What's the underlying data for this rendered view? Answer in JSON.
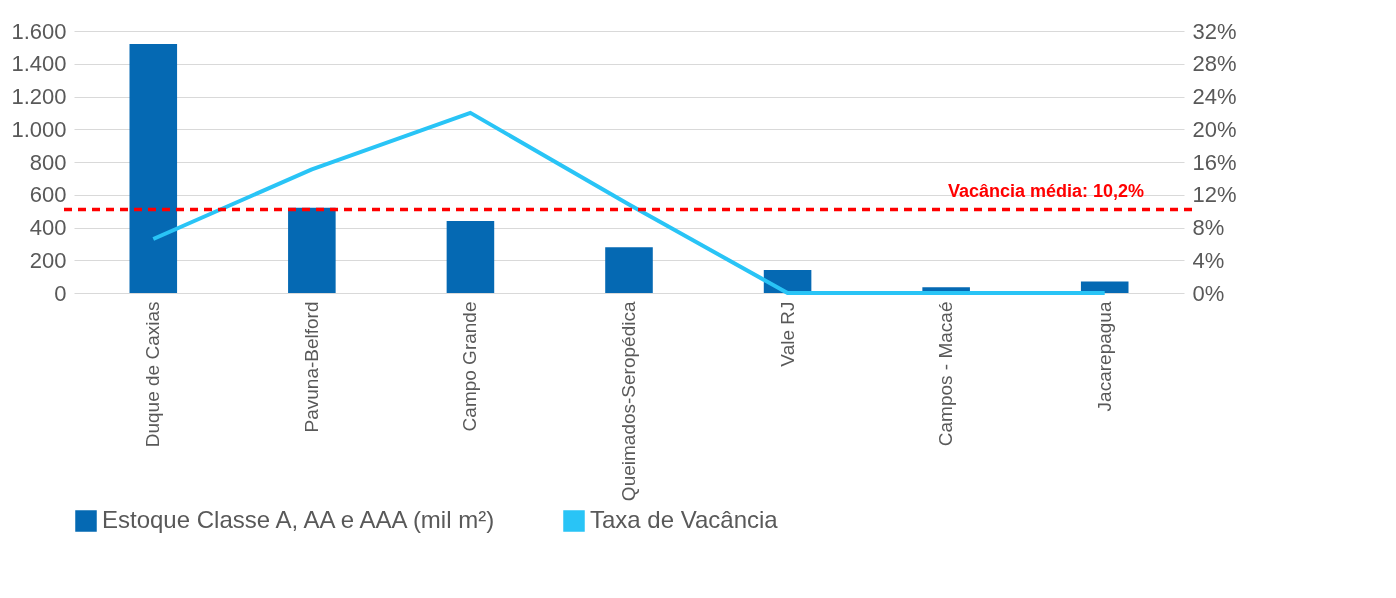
{
  "chart_data": {
    "type": "bar",
    "categories": [
      "Duque de Caxias",
      "Pavuna-Belford",
      "Campo Grande",
      "Queimados-Seropédica",
      "Vale RJ",
      "Campos - Macaé",
      "Jacarepagua"
    ],
    "series": [
      {
        "name": "Estoque Classe A, AA e AAA (mil m²)",
        "color": "#0569b3",
        "values": [
          1520,
          520,
          440,
          280,
          140,
          35,
          70
        ]
      },
      {
        "name": "Taxa de Vacância",
        "type": "line",
        "axis": "y2",
        "color": "#29c4f6",
        "values": [
          6.6,
          15.1,
          22.0,
          10.8,
          0,
          0,
          0
        ]
      }
    ],
    "ylim": [
      0,
      1600
    ],
    "yticks": [
      0,
      200,
      400,
      600,
      800,
      {
        "value": 1000,
        "label": "1.000"
      },
      {
        "value": 1200,
        "label": "1.200"
      },
      {
        "value": 1400,
        "label": "1.400"
      },
      {
        "value": 1600,
        "label": "1.600"
      }
    ],
    "y2lim": [
      0,
      32
    ],
    "y2ticks": [
      {
        "value": 0,
        "label": "0%"
      },
      {
        "value": 4,
        "label": "4%"
      },
      {
        "value": 8,
        "label": "8%"
      },
      {
        "value": 12,
        "label": "12%"
      },
      {
        "value": 16,
        "label": "16%"
      },
      {
        "value": 20,
        "label": "20%"
      },
      {
        "value": 24,
        "label": "24%"
      },
      {
        "value": 28,
        "label": "28%"
      },
      {
        "value": 32,
        "label": "32%"
      }
    ],
    "ref_lines": [
      {
        "axis": "y2",
        "value": 10.2,
        "label": "Vacância média: 10,2%",
        "color": "#ff0000",
        "line_style": "dashed"
      }
    ],
    "grid": "y",
    "legend": "bottom"
  }
}
